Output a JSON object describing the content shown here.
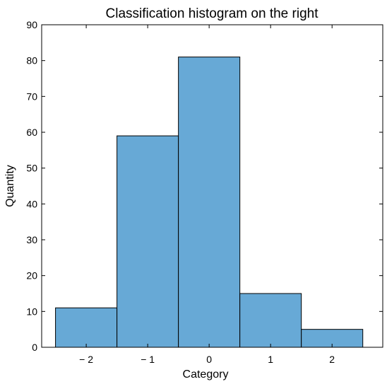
{
  "chart_data": {
    "type": "bar",
    "title": "Classification histogram on the right",
    "xlabel": "Category",
    "ylabel": "Quantity",
    "categories": [
      "− 2",
      "− 1",
      "0",
      "1",
      "2"
    ],
    "values": [
      11,
      59,
      81,
      15,
      5
    ],
    "ylim": [
      0,
      90
    ],
    "yticks": [
      "0",
      "10",
      "20",
      "30",
      "40",
      "50",
      "60",
      "70",
      "80",
      "90"
    ],
    "bar_color": "#67a9d6",
    "grid": false,
    "legend": "none"
  }
}
